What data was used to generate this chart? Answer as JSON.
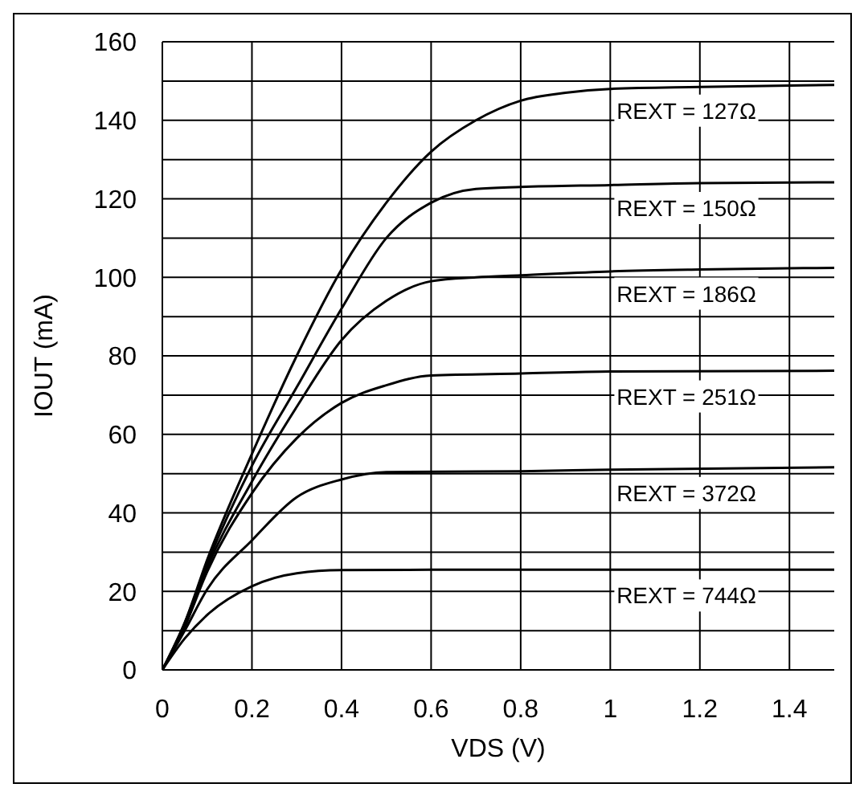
{
  "chart_data": {
    "type": "line",
    "xlabel": "VDS (V)",
    "ylabel": "IOUT (mA)",
    "xlim": [
      0,
      1.5
    ],
    "xticks": [
      0,
      0.2,
      0.4,
      0.6,
      0.8,
      1,
      1.2,
      1.4
    ],
    "ylim": [
      0,
      160
    ],
    "yticks": [
      0,
      {
        "value": 10,
        "label": null
      },
      20,
      {
        "value": 30,
        "label": null
      },
      40,
      {
        "value": 50,
        "label": null
      },
      60,
      {
        "value": 70,
        "label": null
      },
      80,
      {
        "value": 90,
        "label": null
      },
      100,
      {
        "value": 110,
        "label": null
      },
      120,
      {
        "value": 130,
        "label": null
      },
      140,
      {
        "value": 150,
        "label": null
      },
      160
    ],
    "grid": true,
    "legend": false,
    "marker": "none",
    "line_style": "solid",
    "series": [
      {
        "name": "REXT = 127Ω",
        "color": "#000000",
        "x": [
          0,
          0.05,
          0.1,
          0.2,
          0.3,
          0.4,
          0.5,
          0.6,
          0.7,
          0.8,
          0.9,
          1,
          1.2,
          1.5
        ],
        "values": [
          0,
          12,
          28,
          55,
          80,
          102,
          119,
          132,
          140,
          145,
          147,
          148,
          148.5,
          149
        ]
      },
      {
        "name": "REXT = 150Ω",
        "color": "#000000",
        "x": [
          0,
          0.05,
          0.1,
          0.2,
          0.3,
          0.4,
          0.5,
          0.6,
          0.7,
          0.8,
          1,
          1.2,
          1.5
        ],
        "values": [
          0,
          12,
          27,
          52,
          72,
          92,
          110,
          119,
          122.5,
          123,
          123.5,
          124,
          124.2
        ]
      },
      {
        "name": "REXT = 186Ω",
        "color": "#000000",
        "x": [
          0,
          0.05,
          0.1,
          0.2,
          0.3,
          0.4,
          0.5,
          0.6,
          0.7,
          0.8,
          1,
          1.2,
          1.5
        ],
        "values": [
          0,
          11,
          26,
          48,
          67,
          84,
          94,
          99,
          100,
          100.5,
          101.5,
          102,
          102.4
        ]
      },
      {
        "name": "REXT = 251Ω",
        "color": "#000000",
        "x": [
          0,
          0.05,
          0.1,
          0.2,
          0.3,
          0.4,
          0.5,
          0.6,
          0.8,
          1,
          1.5
        ],
        "values": [
          0,
          11,
          25,
          45,
          59,
          68,
          72.5,
          75,
          75.5,
          76,
          76.2
        ]
      },
      {
        "name": "REXT = 372Ω",
        "color": "#000000",
        "x": [
          0,
          0.05,
          0.1,
          0.2,
          0.3,
          0.4,
          0.5,
          0.8,
          1,
          1.5
        ],
        "values": [
          0,
          10,
          20.5,
          33,
          44,
          48.5,
          50.4,
          50.6,
          51,
          51.6
        ]
      },
      {
        "name": "REXT = 744Ω",
        "color": "#000000",
        "x": [
          0,
          0.05,
          0.1,
          0.2,
          0.3,
          0.4,
          0.6,
          1,
          1.5
        ],
        "values": [
          0,
          8,
          14,
          21.3,
          24.6,
          25.4,
          25.5,
          25.5,
          25.5
        ]
      }
    ]
  }
}
